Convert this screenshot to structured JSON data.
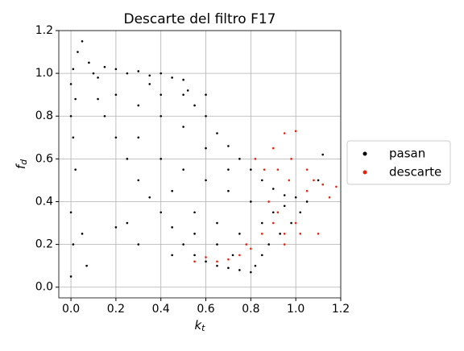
{
  "chart_data": {
    "type": "scatter",
    "title": "Descarte del filtro F17",
    "xlabel": {
      "text": "k",
      "subscript": "t"
    },
    "ylabel": {
      "text": "f",
      "subscript": "d"
    },
    "xlim": [
      -0.054,
      1.2
    ],
    "ylim": [
      -0.05,
      1.2
    ],
    "xticks": [
      {
        "value": 0,
        "label": "0.0"
      },
      0.2,
      0.4,
      0.6,
      0.8,
      {
        "value": 1,
        "label": "1.0"
      },
      1.2
    ],
    "yticks": [
      {
        "value": 0,
        "label": "0.0"
      },
      0.2,
      0.4,
      0.6,
      0.8,
      {
        "value": 1,
        "label": "1.0"
      },
      1.2
    ],
    "grid": true,
    "legend": "right",
    "series": [
      {
        "name": "pasan",
        "color": "#000000",
        "x": [
          0.0,
          0.01,
          0.02,
          0.0,
          0.01,
          0.02,
          0.0,
          0.01,
          0.0,
          0.03,
          0.05,
          0.08,
          0.1,
          0.12,
          0.15,
          0.2,
          0.25,
          0.3,
          0.35,
          0.4,
          0.45,
          0.5,
          0.52,
          0.55,
          0.6,
          0.65,
          0.7,
          0.75,
          0.8,
          0.85,
          0.9,
          0.95,
          1.0,
          1.05,
          1.02,
          0.98,
          0.93,
          0.88,
          0.85,
          0.82,
          0.8,
          0.75,
          0.7,
          0.65,
          0.6,
          0.55,
          0.5,
          0.45,
          0.4,
          0.35,
          0.3,
          0.25,
          0.2,
          0.15,
          0.12,
          0.2,
          0.3,
          0.4,
          0.5,
          0.3,
          0.4,
          0.5,
          0.6,
          0.7,
          0.8,
          0.9,
          0.45,
          0.55,
          0.65,
          0.75,
          0.85,
          0.6,
          0.7,
          0.5,
          0.35,
          0.25,
          0.3,
          0.2,
          0.05,
          0.07,
          0.45,
          0.55,
          0.65,
          0.72,
          0.95,
          1.1,
          1.12,
          0.4,
          0.6
        ],
        "values": [
          0.95,
          1.02,
          0.88,
          0.8,
          0.7,
          0.55,
          0.35,
          0.2,
          0.05,
          1.1,
          1.15,
          1.05,
          1.0,
          0.98,
          1.03,
          1.02,
          1.0,
          1.01,
          0.99,
          1.0,
          0.98,
          0.97,
          0.92,
          0.85,
          0.8,
          0.72,
          0.66,
          0.6,
          0.55,
          0.5,
          0.46,
          0.43,
          0.42,
          0.4,
          0.35,
          0.3,
          0.25,
          0.2,
          0.15,
          0.1,
          0.07,
          0.08,
          0.09,
          0.1,
          0.12,
          0.15,
          0.2,
          0.28,
          0.35,
          0.42,
          0.5,
          0.6,
          0.7,
          0.8,
          0.88,
          0.9,
          0.85,
          0.8,
          0.75,
          0.7,
          0.6,
          0.55,
          0.5,
          0.45,
          0.4,
          0.35,
          0.45,
          0.35,
          0.3,
          0.25,
          0.3,
          0.65,
          0.55,
          0.9,
          0.95,
          0.3,
          0.2,
          0.28,
          0.25,
          0.1,
          0.15,
          0.25,
          0.2,
          0.15,
          0.38,
          0.5,
          0.62,
          0.9,
          0.9
        ]
      },
      {
        "name": "descarte",
        "color": "#e8200c",
        "x": [
          0.9,
          0.95,
          1.0,
          0.92,
          0.97,
          1.05,
          1.08,
          1.12,
          1.15,
          0.88,
          0.9,
          0.95,
          1.0,
          0.85,
          0.8,
          0.75,
          0.7,
          0.65,
          0.6,
          0.55,
          1.1,
          0.92,
          0.98,
          1.05,
          0.82,
          0.86,
          1.18,
          0.78,
          0.95,
          1.02
        ],
        "values": [
          0.65,
          0.72,
          0.73,
          0.55,
          0.5,
          0.45,
          0.5,
          0.48,
          0.42,
          0.4,
          0.3,
          0.25,
          0.3,
          0.25,
          0.18,
          0.15,
          0.13,
          0.12,
          0.14,
          0.12,
          0.25,
          0.35,
          0.6,
          0.55,
          0.6,
          0.55,
          0.47,
          0.2,
          0.2,
          0.25
        ]
      }
    ]
  }
}
